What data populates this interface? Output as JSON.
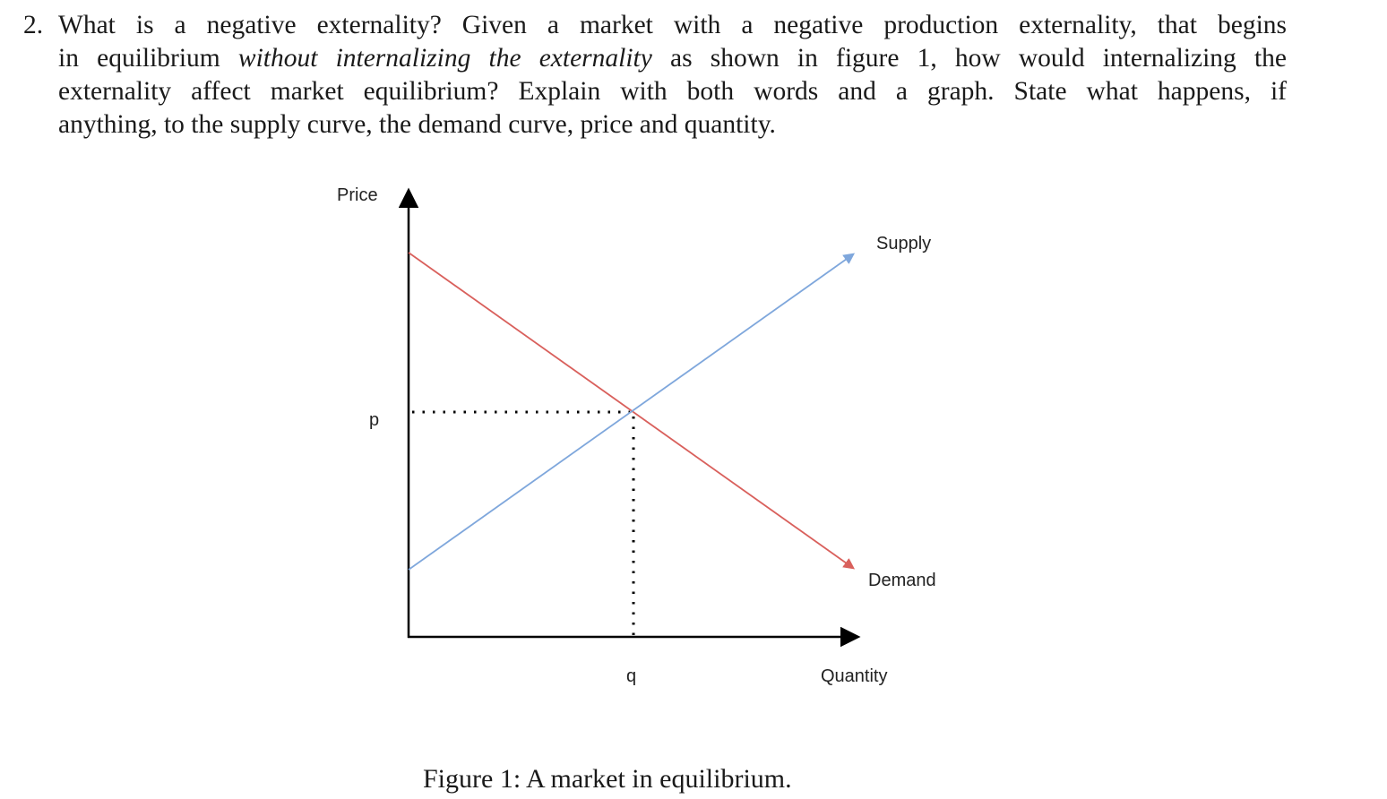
{
  "question": {
    "number": "2.",
    "line1": "What is a negative externality? Given a market with a negative production externality, that begins",
    "line2_before": "in equilibrium ",
    "line2_italic": "without internalizing the externality",
    "line2_after": " as shown in figure 1, how would internalizing the",
    "line3": "externality affect market equilibrium? Explain with both words and a graph. State what happens, if",
    "line4": "anything, to the supply curve, the demand curve, price and quantity."
  },
  "graph": {
    "y_axis_label": "Price",
    "x_axis_label": "Quantity",
    "price_label": "p",
    "quantity_label": "q",
    "supply_label": "Supply",
    "demand_label": "Demand",
    "colors": {
      "supply": "#7fa7dc",
      "demand": "#d9605c",
      "axis": "#000000"
    }
  },
  "caption": "Figure 1: A market in equilibrium."
}
